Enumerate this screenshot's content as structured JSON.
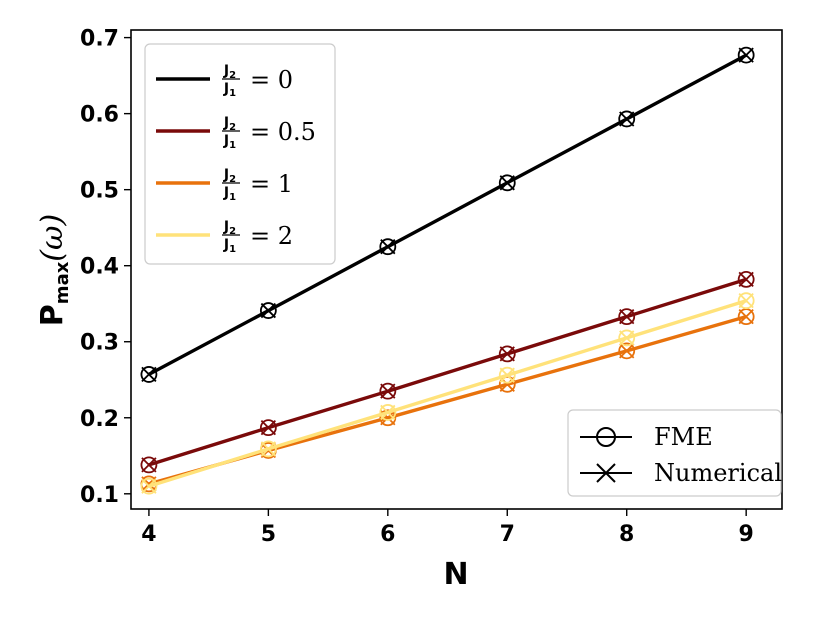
{
  "chart_data": {
    "type": "line",
    "xlabel": "N",
    "ylabel": {
      "main": "P",
      "sub": "max",
      "tail": "(ω)"
    },
    "x": [
      4,
      5,
      6,
      7,
      8,
      9
    ],
    "xticks": [
      "4",
      "5",
      "6",
      "7",
      "8",
      "9"
    ],
    "yticks": [
      "0.1",
      "0.2",
      "0.3",
      "0.4",
      "0.5",
      "0.6",
      "0.7"
    ],
    "xlim": [
      3.85,
      9.3
    ],
    "ylim": [
      0.08,
      0.71
    ],
    "series": [
      {
        "name": "J2/J1 = 0",
        "ratio": "0",
        "color": "#000000",
        "values": [
          0.257,
          0.341,
          0.425,
          0.509,
          0.593,
          0.677
        ]
      },
      {
        "name": "J2/J1 = 0.5",
        "ratio": "0.5",
        "color": "#7a0a0a",
        "values": [
          0.138,
          0.187,
          0.235,
          0.284,
          0.333,
          0.382
        ]
      },
      {
        "name": "J2/J1 = 1",
        "ratio": "1",
        "color": "#e8720c",
        "values": [
          0.113,
          0.157,
          0.2,
          0.244,
          0.288,
          0.333
        ]
      },
      {
        "name": "J2/J1 = 2",
        "ratio": "2",
        "color": "#ffe27a",
        "values": [
          0.11,
          0.159,
          0.207,
          0.256,
          0.305,
          0.354
        ]
      }
    ],
    "legend_series": {
      "placement": "top-left",
      "frac_num": "J",
      "frac_num_sub": "2",
      "frac_den": "J",
      "frac_den_sub": "1",
      "equals": "="
    },
    "legend_markers": {
      "placement": "lower-right",
      "items": [
        {
          "label": "FME",
          "marker": "circle"
        },
        {
          "label": "Numerical",
          "marker": "x"
        }
      ]
    },
    "grid": false
  }
}
